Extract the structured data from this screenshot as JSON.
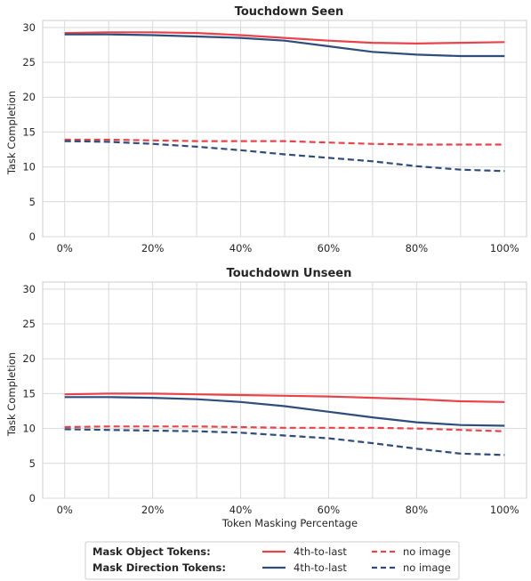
{
  "chart_data": [
    {
      "type": "line",
      "title": "Touchdown Seen",
      "xlabel": "",
      "ylabel": "Task Completion",
      "x": [
        0,
        10,
        20,
        30,
        40,
        50,
        60,
        70,
        80,
        90,
        100
      ],
      "x_tick_values": [
        0,
        20,
        40,
        60,
        80,
        100
      ],
      "x_tick_labels": [
        "0%",
        "20%",
        "40%",
        "60%",
        "80%",
        "100%"
      ],
      "y_tick_labels": [
        "0",
        "5",
        "10",
        "15",
        "20",
        "25",
        "30"
      ],
      "xlim": [
        -5,
        105
      ],
      "ylim": [
        0,
        31
      ],
      "grid": true,
      "series": [
        {
          "key": "object_4th",
          "color": "#e8434a",
          "dash": "solid",
          "values": [
            29.2,
            29.3,
            29.3,
            29.2,
            28.9,
            28.5,
            28.1,
            27.8,
            27.7,
            27.8,
            27.9
          ]
        },
        {
          "key": "direction_4th",
          "color": "#2e4d7c",
          "dash": "solid",
          "values": [
            29.0,
            29.0,
            28.9,
            28.7,
            28.5,
            28.1,
            27.3,
            26.5,
            26.1,
            25.9,
            25.9
          ]
        },
        {
          "key": "object_noimg",
          "color": "#e8434a",
          "dash": "dashed",
          "values": [
            13.9,
            13.9,
            13.8,
            13.7,
            13.7,
            13.7,
            13.5,
            13.3,
            13.2,
            13.2,
            13.2
          ]
        },
        {
          "key": "direction_noimg",
          "color": "#2e4d7c",
          "dash": "dashed",
          "values": [
            13.7,
            13.6,
            13.3,
            12.9,
            12.4,
            11.8,
            11.3,
            10.8,
            10.1,
            9.6,
            9.4
          ]
        }
      ]
    },
    {
      "type": "line",
      "title": "Touchdown Unseen",
      "xlabel": "Token Masking Percentage",
      "ylabel": "Task Completion",
      "x": [
        0,
        10,
        20,
        30,
        40,
        50,
        60,
        70,
        80,
        90,
        100
      ],
      "x_tick_values": [
        0,
        20,
        40,
        60,
        80,
        100
      ],
      "x_tick_labels": [
        "0%",
        "20%",
        "40%",
        "60%",
        "80%",
        "100%"
      ],
      "y_tick_labels": [
        "0",
        "5",
        "10",
        "15",
        "20",
        "25",
        "30"
      ],
      "xlim": [
        -5,
        105
      ],
      "ylim": [
        0,
        31
      ],
      "grid": true,
      "series": [
        {
          "key": "object_4th",
          "color": "#e8434a",
          "dash": "solid",
          "values": [
            14.9,
            15.0,
            15.0,
            14.9,
            14.8,
            14.7,
            14.6,
            14.4,
            14.2,
            13.9,
            13.8
          ]
        },
        {
          "key": "direction_4th",
          "color": "#2e4d7c",
          "dash": "solid",
          "values": [
            14.5,
            14.5,
            14.4,
            14.2,
            13.8,
            13.2,
            12.4,
            11.6,
            10.9,
            10.5,
            10.4
          ]
        },
        {
          "key": "object_noimg",
          "color": "#e8434a",
          "dash": "dashed",
          "values": [
            10.2,
            10.3,
            10.3,
            10.3,
            10.2,
            10.1,
            10.1,
            10.1,
            10.0,
            9.8,
            9.6
          ]
        },
        {
          "key": "direction_noimg",
          "color": "#2e4d7c",
          "dash": "dashed",
          "values": [
            9.9,
            9.8,
            9.7,
            9.6,
            9.4,
            9.0,
            8.6,
            7.9,
            7.1,
            6.4,
            6.2
          ]
        }
      ]
    }
  ],
  "legend": {
    "placement": "bottom-center",
    "rows": [
      {
        "label": "Mask Object Tokens:",
        "color": "#e8434a",
        "solid_label": "4th-to-last",
        "dashed_label": "no image"
      },
      {
        "label": "Mask Direction Tokens:",
        "color": "#2e4d7c",
        "solid_label": "4th-to-last",
        "dashed_label": "no image"
      }
    ]
  }
}
